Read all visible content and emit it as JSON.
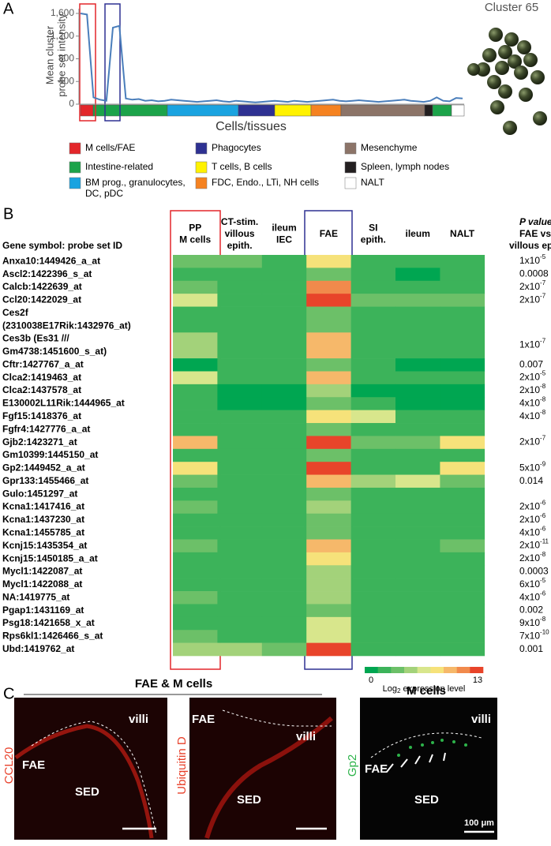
{
  "panel_labels": [
    "A",
    "B",
    "C"
  ],
  "chart_data": {
    "type": "line",
    "y_label": [
      "Mean cluster",
      "probe set intensity"
    ],
    "x_label": "Cells/tissues",
    "ylim": [
      0,
      1600
    ],
    "yticks": [
      0,
      400,
      800,
      {
        "value": 1200,
        "label": "1,200"
      },
      {
        "value": 1600,
        "label": "1,600"
      }
    ],
    "series": [
      {
        "color": "#4a7ebb",
        "values": [
          1600,
          1580,
          120,
          80,
          60,
          1350,
          1380,
          100,
          80,
          90,
          60,
          70,
          50,
          60,
          80,
          70,
          60,
          50,
          40,
          50,
          60,
          70,
          50,
          40,
          60,
          50,
          40,
          30,
          40,
          50,
          60,
          50,
          40,
          60,
          50,
          40,
          50,
          60,
          70,
          80,
          60,
          50,
          60,
          70,
          60,
          50,
          40,
          50,
          60,
          70,
          80,
          60,
          50,
          40,
          60,
          120,
          60,
          50,
          110,
          100
        ]
      }
    ]
  },
  "cluster_label": "Cluster 65",
  "groups": [
    {
      "label": [
        "M cells/FAE"
      ],
      "color": "#e3262a"
    },
    {
      "label": [
        "Phagocytes"
      ],
      "color": "#2e3192"
    },
    {
      "label": [
        "Mesenchyme"
      ],
      "color": "#8c7468"
    },
    {
      "label": [
        "Intestine-related"
      ],
      "color": "#1ca34a"
    },
    {
      "label": [
        "T cells, B cells"
      ],
      "color": "#fff200"
    },
    {
      "label": [
        "Spleen, lymph nodes"
      ],
      "color": "#231f20"
    },
    {
      "label": [
        "BM prog., granulocytes,",
        "DC, pDC"
      ],
      "color": "#1aa3e0"
    },
    {
      "label": [
        "FDC, Endo., LTi, NH cells"
      ],
      "color": "#f58220"
    },
    {
      "label": [
        "NALT"
      ],
      "color": "#ffffff"
    }
  ],
  "heatmap": {
    "gene_header": "Gene symbol: probe set ID",
    "p_header": [
      "P value",
      "FAE vs.",
      "villous epith."
    ],
    "columns": [
      [
        "PP",
        "M cells"
      ],
      [
        "CT-stim.",
        "villous",
        "epith."
      ],
      [
        "ileum",
        "IEC"
      ],
      [
        "FAE"
      ],
      [
        "SI",
        "epith."
      ],
      [
        "ileum"
      ],
      [
        "NALT"
      ]
    ],
    "rows": [
      {
        "gene": [
          "Anxa10:1449426_a_at"
        ],
        "values": [
          4.2,
          4.3,
          2.5,
          8.5,
          2.2,
          2.2,
          2.2
        ],
        "p": {
          "text": "1x10",
          "sup": "-5"
        }
      },
      {
        "gene": [
          "Ascl2:1422396_s_at"
        ],
        "values": [
          2.2,
          2.2,
          2.2,
          3,
          2.2,
          0.7,
          2.2
        ],
        "p": {
          "text": "0.0008"
        }
      },
      {
        "gene": [
          "Calcb:1422639_at"
        ],
        "values": [
          3.6,
          2.2,
          2.2,
          10.8,
          2.2,
          2.2,
          2.2
        ],
        "p": {
          "text": "2x10",
          "sup": "-7"
        }
      },
      {
        "gene": [
          "Ccl20:1422029_at"
        ],
        "values": [
          6.5,
          2.2,
          2.2,
          12.3,
          3.6,
          3.6,
          3.6
        ],
        "p": {
          "text": "2x10",
          "sup": "-7"
        }
      },
      {
        "gene": [
          "Ces2f",
          "(2310038E17Rik:1432976_at)"
        ],
        "values": [
          2.2,
          2.2,
          2.2,
          3,
          2.2,
          2.2,
          2.2
        ],
        "p": null
      },
      {
        "gene": [
          "Ces3b (Es31 ///",
          "Gm4738:1451600_s_at)"
        ],
        "values": [
          5.1,
          2.2,
          2.2,
          9.4,
          2.2,
          2.2,
          2.2
        ],
        "p": {
          "text": "1x10",
          "sup": "-7"
        }
      },
      {
        "gene": [
          "Cftr:1427767_a_at"
        ],
        "values": [
          0.7,
          2.2,
          2.2,
          3.6,
          2.2,
          0.7,
          0.7
        ],
        "p": {
          "text": "0.007"
        }
      },
      {
        "gene": [
          "Clca2:1419463_at"
        ],
        "values": [
          6.5,
          2.2,
          2.2,
          10,
          2.2,
          2.2,
          2.2
        ],
        "p": {
          "text": "2x10",
          "sup": "-5"
        }
      },
      {
        "gene": [
          "Clca2:1437578_at"
        ],
        "values": [
          2.2,
          0.7,
          0.7,
          5.1,
          0.7,
          0.7,
          0.7
        ],
        "p": {
          "text": "2x10",
          "sup": "-8"
        }
      },
      {
        "gene": [
          "E130002L11Rik:1444965_at"
        ],
        "values": [
          2.2,
          0.7,
          0.7,
          3.6,
          2.2,
          0.7,
          0.7
        ],
        "p": {
          "text": "4x10",
          "sup": "-8"
        }
      },
      {
        "gene": [
          "Fgf15:1418376_at"
        ],
        "values": [
          2.2,
          2.2,
          2.2,
          8.5,
          6.5,
          2.2,
          2.2
        ],
        "p": {
          "text": "4x10",
          "sup": "-8"
        }
      },
      {
        "gene": [
          "Fgfr4:1427776_a_at"
        ],
        "values": [
          2.2,
          2.2,
          2.2,
          3.6,
          2.2,
          2.2,
          2.2
        ],
        "p": null
      },
      {
        "gene": [
          "Gjb2:1423271_at"
        ],
        "values": [
          9.4,
          2.2,
          2.2,
          12.3,
          3.6,
          3.6,
          8.5
        ],
        "p": {
          "text": "2x10",
          "sup": "-7"
        }
      },
      {
        "gene": [
          "Gm10399:1445150_at"
        ],
        "values": [
          2.2,
          2.2,
          2.2,
          3.6,
          2.2,
          2.2,
          2.2
        ],
        "p": null
      },
      {
        "gene": [
          "Gp2:1449452_a_at"
        ],
        "values": [
          8.5,
          2.2,
          2.2,
          12.3,
          2.2,
          2.2,
          8
        ],
        "p": {
          "text": "5x10",
          "sup": "-9"
        }
      },
      {
        "gene": [
          "Gpr133:1455466_at"
        ],
        "values": [
          3.6,
          2.2,
          2.2,
          9,
          5.1,
          6.5,
          3.6
        ],
        "p": {
          "text": "0.014"
        }
      },
      {
        "gene": [
          "Gulo:1451297_at"
        ],
        "values": [
          2.2,
          2.2,
          2.2,
          3,
          2.2,
          2.2,
          2.2
        ],
        "p": null
      },
      {
        "gene": [
          "Kcna1:1417416_at"
        ],
        "values": [
          3.6,
          2.2,
          2.2,
          5.5,
          2.2,
          2.2,
          2.2
        ],
        "p": {
          "text": "2x10",
          "sup": "-6"
        }
      },
      {
        "gene": [
          "Kcna1:1437230_at"
        ],
        "values": [
          2.2,
          2.2,
          2.2,
          3.6,
          2.2,
          2.2,
          2.2
        ],
        "p": {
          "text": "2x10",
          "sup": "-6"
        }
      },
      {
        "gene": [
          "Kcna1:1455785_at"
        ],
        "values": [
          2.2,
          2.2,
          2.2,
          3.6,
          2.2,
          2.2,
          2.2
        ],
        "p": {
          "text": "4x10",
          "sup": "-6"
        }
      },
      {
        "gene": [
          "Kcnj15:1435354_at"
        ],
        "values": [
          3.6,
          2.2,
          2.2,
          9.4,
          2.2,
          2.2,
          3.6
        ],
        "p": {
          "text": "2x10",
          "sup": "-11"
        }
      },
      {
        "gene": [
          "Kcnj15:1450185_a_at"
        ],
        "values": [
          2.2,
          2.2,
          2.2,
          7.5,
          2.2,
          2.2,
          2.2
        ],
        "p": {
          "text": "2x10",
          "sup": "-8"
        }
      },
      {
        "gene": [
          "Mycl1:1422087_at"
        ],
        "values": [
          2.2,
          2.2,
          2.2,
          5,
          2.2,
          2.2,
          2.2
        ],
        "p": {
          "text": "0.0003"
        }
      },
      {
        "gene": [
          "Mycl1:1422088_at"
        ],
        "values": [
          2.2,
          2.2,
          2.2,
          5,
          2.2,
          2.2,
          2.2
        ],
        "p": {
          "text": "6x10",
          "sup": "-5"
        }
      },
      {
        "gene": [
          "NA:1419775_at"
        ],
        "values": [
          3.6,
          2.2,
          2.2,
          5.5,
          2.2,
          2.2,
          2.2
        ],
        "p": {
          "text": "4x10",
          "sup": "-6"
        }
      },
      {
        "gene": [
          "Pgap1:1431169_at"
        ],
        "values": [
          2.2,
          2.2,
          2.2,
          3.6,
          2.2,
          2.2,
          2.2
        ],
        "p": {
          "text": "0.002"
        }
      },
      {
        "gene": [
          "Psg18:1421658_x_at"
        ],
        "values": [
          2.2,
          2.2,
          2.2,
          6.5,
          2.2,
          2.2,
          2.2
        ],
        "p": {
          "text": "9x10",
          "sup": "-8"
        }
      },
      {
        "gene": [
          "Rps6kl1:1426466_s_at"
        ],
        "values": [
          3.6,
          2.2,
          2.2,
          6.5,
          2.2,
          2.2,
          2.2
        ],
        "p": {
          "text": "7x10",
          "sup": "-10"
        }
      },
      {
        "gene": [
          "Ubd:1419762_at"
        ],
        "values": [
          5.5,
          5.1,
          3.6,
          12.3,
          2.2,
          2.2,
          2.2
        ],
        "p": {
          "text": "0.001"
        }
      }
    ],
    "scale": {
      "min": 0,
      "max": 13,
      "colors": [
        "#00a651",
        "#3cb35a",
        "#6cc068",
        "#a3d27a",
        "#d8e68c",
        "#f6e27a",
        "#f6b86a",
        "#f18a4c",
        "#e8442a"
      ],
      "label": {
        "text": "Log",
        "sub": "2",
        "rest": " expression level"
      }
    }
  },
  "micrographs": {
    "title": "FAE & M cells",
    "title2": "M cells",
    "stains": [
      "CCL20",
      "Ubiquitin D",
      "Gp2"
    ],
    "labels1": [
      "FAE",
      "SED",
      "villi"
    ],
    "labels2": [
      "FAE",
      "villi",
      "SED"
    ],
    "labels3": [
      "villi",
      "FAE",
      "SED"
    ],
    "scale_bar": "100 μm"
  }
}
